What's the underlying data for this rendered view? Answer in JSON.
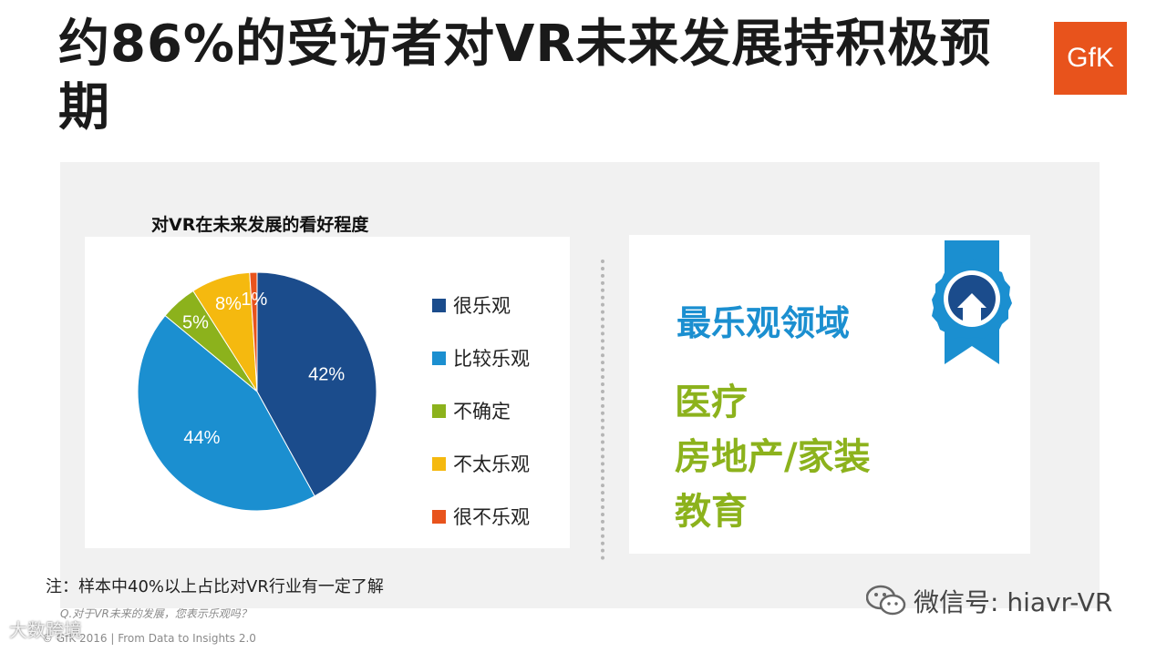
{
  "title": "约86%的受访者对VR未来发展持积极预期",
  "logo_text": "GfK",
  "chart_title": "对VR在未来发展的看好程度",
  "chart_data": {
    "type": "pie",
    "title": "对VR在未来发展的看好程度",
    "slices": [
      {
        "label": "很乐观",
        "value": 42,
        "display": "42%",
        "color": "#1b4c8c"
      },
      {
        "label": "比较乐观",
        "value": 44,
        "display": "44%",
        "color": "#1b8fd0"
      },
      {
        "label": "不确定",
        "value": 5,
        "display": "5%",
        "color": "#8cb21c"
      },
      {
        "label": "不太乐观",
        "value": 8,
        "display": "8%",
        "color": "#f5b90f"
      },
      {
        "label": "很不乐观",
        "value": 1,
        "display": "1%",
        "color": "#e8531c"
      }
    ],
    "legend_position": "right"
  },
  "card": {
    "heading": "最乐观领域",
    "fields": [
      "医疗",
      "房地产/家装",
      "教育"
    ]
  },
  "note": "注：样本中40%以上占比对VR行业有一定了解",
  "question": "Q.对于VR未来的发展，您表示乐观吗？",
  "copyright": "© GfK 2016 | From Data to Insights 2.0",
  "watermark_brand": "大数跨境",
  "wechat": "微信号: hiavr-VR"
}
